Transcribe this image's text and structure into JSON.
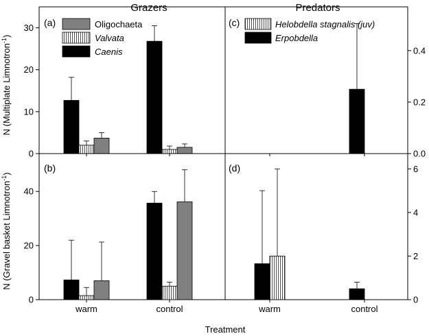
{
  "figure": {
    "column_titles": [
      "Grazers",
      "Predators"
    ],
    "xlabel": "Treatment",
    "ylabel_top": "N (Multiplate Limnotron",
    "ylabel_bottom": "N (Gravel basket Limnotron",
    "ylabel_superscript": "-1",
    "ylabel_close": ")",
    "categories": [
      "warm",
      "control"
    ]
  },
  "legends": {
    "grazers": [
      {
        "label": "Oligochaeta",
        "style": "gray",
        "italic": false
      },
      {
        "label": "Valvata",
        "style": "hatch",
        "italic": true
      },
      {
        "label": "Caenis",
        "style": "black",
        "italic": true
      }
    ],
    "predators": [
      {
        "label": "Helobdella stagnalis (juv)",
        "style": "hatch",
        "italic": true
      },
      {
        "label": "Erpobdella",
        "style": "black",
        "italic": true
      }
    ]
  },
  "colors": {
    "black_bar": "#000000",
    "gray_bar": "#808080",
    "hatch_bar": "#ffffff",
    "axis": "#000000"
  },
  "chart_data": [
    {
      "panel": "(a)",
      "type": "bar",
      "group": "Grazers",
      "categories": [
        "warm",
        "control"
      ],
      "ylim": [
        0,
        35
      ],
      "yticks": [
        0,
        10,
        20,
        30
      ],
      "series": [
        {
          "name": "Caenis",
          "style": "black",
          "values": [
            12.7,
            26.8
          ],
          "errors": [
            5.5,
            3.7
          ]
        },
        {
          "name": "Valvata",
          "style": "hatch",
          "values": [
            2.0,
            1.0
          ],
          "errors": [
            1.0,
            0.8
          ]
        },
        {
          "name": "Oligochaeta",
          "style": "gray",
          "values": [
            3.7,
            1.5
          ],
          "errors": [
            1.3,
            0.8
          ]
        }
      ]
    },
    {
      "panel": "(c)",
      "type": "bar",
      "group": "Predators",
      "categories": [
        "warm",
        "control"
      ],
      "ylim": [
        0,
        0.57
      ],
      "yticks": [
        0.0,
        0.2,
        0.4
      ],
      "tick_format": 1,
      "series": [
        {
          "name": "Erpobdella",
          "style": "black",
          "values": [
            0,
            0.25
          ],
          "errors": [
            0,
            0.255
          ]
        },
        {
          "name": "Helobdella stagnalis (juv)",
          "style": "hatch",
          "values": [
            0,
            0
          ],
          "errors": [
            0,
            0
          ]
        }
      ]
    },
    {
      "panel": "(b)",
      "type": "bar",
      "group": "Grazers",
      "categories": [
        "warm",
        "control"
      ],
      "ylim": [
        0,
        54
      ],
      "yticks": [
        0,
        20,
        40
      ],
      "series": [
        {
          "name": "Caenis",
          "style": "black",
          "values": [
            7.3,
            35.7
          ],
          "errors": [
            14.7,
            4.3
          ]
        },
        {
          "name": "Valvata",
          "style": "hatch",
          "values": [
            1.5,
            5.0
          ],
          "errors": [
            3.0,
            1.5
          ]
        },
        {
          "name": "Oligochaeta",
          "style": "gray",
          "values": [
            7.0,
            36.2
          ],
          "errors": [
            14.3,
            11.8
          ]
        }
      ]
    },
    {
      "panel": "(d)",
      "type": "bar",
      "group": "Predators",
      "categories": [
        "warm",
        "control"
      ],
      "ylim": [
        0,
        6.7
      ],
      "yticks": [
        0,
        2,
        4,
        6
      ],
      "series": [
        {
          "name": "Erpobdella",
          "style": "black",
          "values": [
            1.65,
            0.5
          ],
          "errors": [
            3.35,
            0.3
          ]
        },
        {
          "name": "Helobdella stagnalis (juv)",
          "style": "hatch",
          "values": [
            2.0,
            0
          ],
          "errors": [
            4.0,
            0
          ]
        }
      ]
    }
  ]
}
